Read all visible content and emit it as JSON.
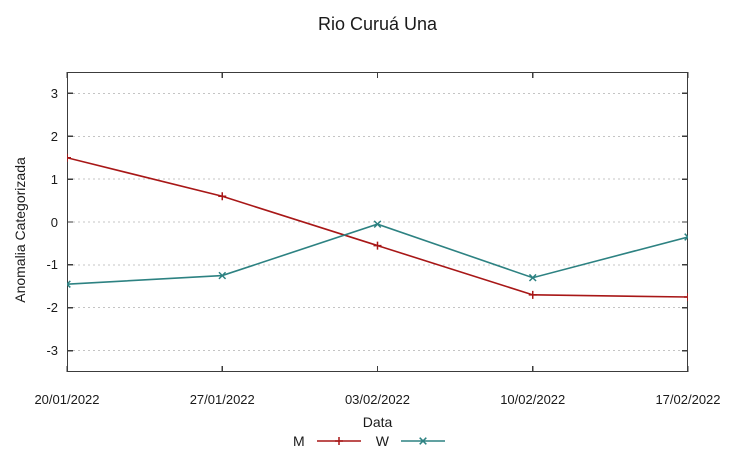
{
  "chart_data": {
    "type": "line",
    "title": "Rio Curuá Una",
    "xlabel": "Data",
    "ylabel": "Anomalia Categorizada",
    "categories": [
      "20/01/2022",
      "27/01/2022",
      "03/02/2022",
      "10/02/2022",
      "17/02/2022"
    ],
    "series": [
      {
        "name": "M",
        "marker": "plus",
        "color": "#a81717",
        "values": [
          1.5,
          0.6,
          -0.55,
          -1.7,
          -1.75
        ]
      },
      {
        "name": "W",
        "marker": "cross",
        "color": "#2d8282",
        "values": [
          -1.45,
          -1.25,
          -0.05,
          -1.3,
          -0.35
        ]
      }
    ],
    "y_ticks": [
      3,
      2,
      1,
      0,
      -1,
      -2,
      -3
    ],
    "ylim": [
      -3.5,
      3.5
    ],
    "grid": "horizontal-dashed",
    "legend_position": "bottom-center",
    "border_color": "#3c3c3c",
    "grid_color": "#c4c4c4"
  }
}
